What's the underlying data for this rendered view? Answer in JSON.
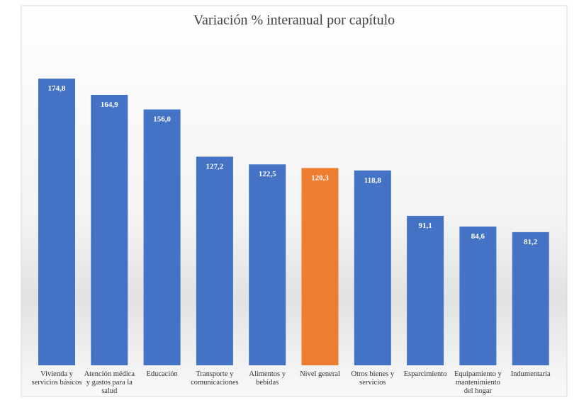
{
  "chart_data": {
    "type": "bar",
    "title": "Variación % interanual por capítulo",
    "categories": [
      "Vivienda y servicios básicos",
      "Atención médica y gastos para la salud",
      "Educación",
      "Transporte y comunicaciones",
      "Alimentos y bebidas",
      "Nivel general",
      "Otros bienes y servicios",
      "Esparcimiento",
      "Equipamiento y mantenimiento del hogar",
      "Indumentaria"
    ],
    "values": [
      174.8,
      164.9,
      156.0,
      127.2,
      122.5,
      120.3,
      118.8,
      91.1,
      84.6,
      81.2
    ],
    "value_labels": [
      "174,8",
      "164,9",
      "156,0",
      "127,2",
      "122,5",
      "120,3",
      "118,8",
      "91,1",
      "84,6",
      "81,2"
    ],
    "colors": [
      "#4472c4",
      "#4472c4",
      "#4472c4",
      "#4472c4",
      "#4472c4",
      "#ed7d31",
      "#4472c4",
      "#4472c4",
      "#4472c4",
      "#4472c4"
    ],
    "ylim": [
      0,
      180
    ]
  }
}
